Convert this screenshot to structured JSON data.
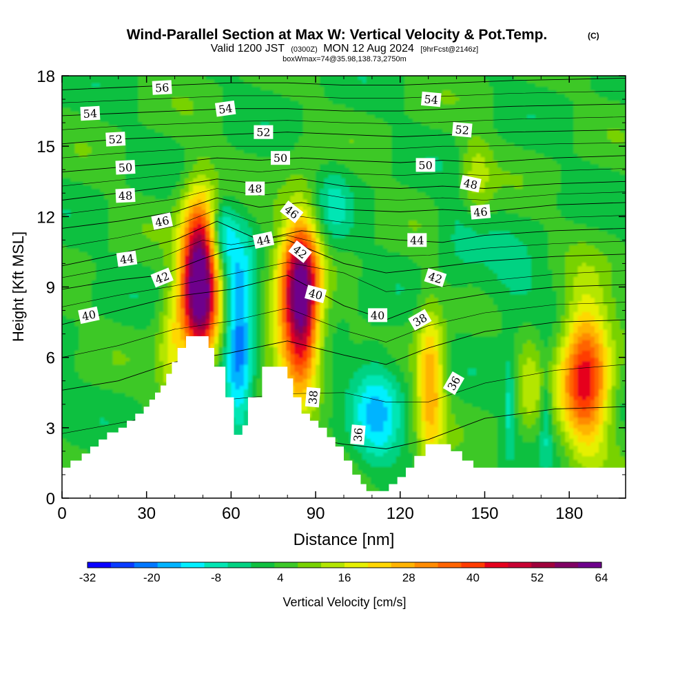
{
  "chart_data": {
    "type": "heatmap",
    "title": "Wind-Parallel Section at Max W: Vertical Velocity & Pot.Temp.",
    "title_mark": "(C)",
    "subtitle": {
      "main": "Valid 1200 JST",
      "utc": "(0300Z)",
      "date": "MON 12 Aug 2024",
      "forecast": "[9hrFcst@2146z]"
    },
    "boxline": "boxWmax=74@35.98,138.73,2750m",
    "xlabel": "Distance [nm]",
    "ylabel": "Height [Kft MSL]",
    "xlim": [
      0,
      200
    ],
    "ylim": [
      0,
      18
    ],
    "xticks": [
      "0",
      "30",
      "60",
      "90",
      "120",
      "150",
      "180"
    ],
    "yticks": [
      "0",
      "3",
      "6",
      "9",
      "12",
      "15",
      "18"
    ],
    "colorbar": {
      "label": "Vertical Velocity [cm/s]",
      "ticks": [
        "-32",
        "-20",
        "-8",
        "4",
        "16",
        "28",
        "40",
        "52",
        "64"
      ],
      "min": -32,
      "max": 64,
      "colors": [
        "#0a00ff",
        "#0a3cff",
        "#0078ff",
        "#00b4ff",
        "#00f0ff",
        "#00e6b4",
        "#00d282",
        "#10c040",
        "#3cc828",
        "#78d200",
        "#b4e600",
        "#e6f000",
        "#ffd700",
        "#ffb400",
        "#ff8c00",
        "#ff6400",
        "#ff3c00",
        "#e6001e",
        "#c80032",
        "#a0003c",
        "#800064",
        "#6e008c"
      ]
    },
    "w_cells": [
      {
        "x": 48,
        "y": 9.2,
        "sx": 4.5,
        "sy": 2.3,
        "w": 70
      },
      {
        "x": 84,
        "y": 8.3,
        "sx": 4.5,
        "sy": 2.4,
        "w": 65
      },
      {
        "x": 185,
        "y": 5.2,
        "sx": 6,
        "sy": 2.2,
        "w": 42
      },
      {
        "x": 130,
        "y": 4.8,
        "sx": 3.5,
        "sy": 2.3,
        "w": 26
      },
      {
        "x": 38,
        "y": 6.2,
        "sx": 3.5,
        "sy": 1.8,
        "w": 14
      },
      {
        "x": 76,
        "y": 7.5,
        "sx": 3.5,
        "sy": 2.0,
        "w": 10
      },
      {
        "x": 146,
        "y": 13.6,
        "sx": 4,
        "sy": 1.2,
        "w": 12
      },
      {
        "x": 165,
        "y": 4.8,
        "sx": 3,
        "sy": 1.8,
        "w": 10
      },
      {
        "x": 62,
        "y": 7.0,
        "sx": 3.5,
        "sy": 2.6,
        "w": -26
      },
      {
        "x": 111,
        "y": 3.6,
        "sx": 6,
        "sy": 1.8,
        "w": -16
      },
      {
        "x": 56,
        "y": 11.3,
        "sx": 3,
        "sy": 1.0,
        "w": -14
      },
      {
        "x": 96,
        "y": 12.3,
        "sx": 4,
        "sy": 1.2,
        "w": -8
      },
      {
        "x": 158,
        "y": 3.8,
        "sx": 1.4,
        "sy": 1.5,
        "w": -10
      },
      {
        "x": 171,
        "y": 3.6,
        "sx": 1.4,
        "sy": 1.5,
        "w": -10
      },
      {
        "x": 160,
        "y": 8.7,
        "sx": 9,
        "sy": 1.3,
        "w": -6
      },
      {
        "x": 140,
        "y": 11.3,
        "sx": 6,
        "sy": 1.4,
        "w": -6
      }
    ],
    "terrain": [
      [
        0,
        1.3
      ],
      [
        3,
        1.3
      ],
      [
        3,
        1.6
      ],
      [
        7,
        1.6
      ],
      [
        7,
        1.9
      ],
      [
        10,
        1.9
      ],
      [
        10,
        2.2
      ],
      [
        13,
        2.2
      ],
      [
        13,
        2.5
      ],
      [
        16,
        2.5
      ],
      [
        16,
        2.8
      ],
      [
        20,
        2.8
      ],
      [
        20,
        3.0
      ],
      [
        23,
        3.0
      ],
      [
        23,
        3.3
      ],
      [
        26,
        3.3
      ],
      [
        26,
        3.6
      ],
      [
        29,
        3.6
      ],
      [
        29,
        3.9
      ],
      [
        31,
        3.9
      ],
      [
        31,
        4.2
      ],
      [
        33,
        4.2
      ],
      [
        33,
        4.5
      ],
      [
        35,
        4.5
      ],
      [
        35,
        4.8
      ],
      [
        37,
        4.8
      ],
      [
        37,
        5.3
      ],
      [
        39,
        5.3
      ],
      [
        39,
        5.8
      ],
      [
        41,
        5.8
      ],
      [
        41,
        6.4
      ],
      [
        44,
        6.4
      ],
      [
        44,
        6.9
      ],
      [
        52,
        6.9
      ],
      [
        52,
        6.4
      ],
      [
        54,
        6.4
      ],
      [
        54,
        5.6
      ],
      [
        58,
        5.6
      ],
      [
        58,
        4.3
      ],
      [
        61,
        4.3
      ],
      [
        61,
        2.7
      ],
      [
        64,
        2.7
      ],
      [
        64,
        3.1
      ],
      [
        66,
        3.1
      ],
      [
        66,
        4.3
      ],
      [
        71,
        4.3
      ],
      [
        71,
        5.6
      ],
      [
        80,
        5.6
      ],
      [
        80,
        5.1
      ],
      [
        82,
        5.1
      ],
      [
        82,
        4.3
      ],
      [
        85,
        4.3
      ],
      [
        85,
        3.6
      ],
      [
        88,
        3.6
      ],
      [
        88,
        3.3
      ],
      [
        91,
        3.3
      ],
      [
        91,
        3.0
      ],
      [
        94,
        3.0
      ],
      [
        94,
        2.6
      ],
      [
        97,
        2.6
      ],
      [
        97,
        2.2
      ],
      [
        100,
        2.2
      ],
      [
        100,
        1.6
      ],
      [
        103,
        1.6
      ],
      [
        103,
        1.0
      ],
      [
        106,
        1.0
      ],
      [
        106,
        0.6
      ],
      [
        108,
        0.6
      ],
      [
        108,
        0.3
      ],
      [
        116,
        0.3
      ],
      [
        116,
        0.6
      ],
      [
        119,
        0.6
      ],
      [
        119,
        0.9
      ],
      [
        122,
        0.9
      ],
      [
        122,
        1.3
      ],
      [
        125,
        1.3
      ],
      [
        125,
        1.8
      ],
      [
        129,
        1.8
      ],
      [
        129,
        2.3
      ],
      [
        138,
        2.3
      ],
      [
        138,
        2.0
      ],
      [
        142,
        2.0
      ],
      [
        142,
        1.6
      ],
      [
        146,
        1.6
      ],
      [
        146,
        1.3
      ],
      [
        200,
        1.3
      ]
    ],
    "theta_contours": [
      {
        "theta": 36,
        "pts": [
          [
            0,
            0.9
          ],
          [
            25,
            1.6
          ],
          [
            50,
            2.4
          ],
          [
            80,
            2.7
          ],
          [
            100,
            2.3
          ],
          [
            115,
            2.1
          ],
          [
            130,
            2.5
          ],
          [
            150,
            3.4
          ],
          [
            175,
            3.8
          ],
          [
            200,
            3.9
          ]
        ]
      },
      {
        "theta": 38,
        "pts": [
          [
            0,
            4.6
          ],
          [
            20,
            5.0
          ],
          [
            40,
            5.8
          ],
          [
            60,
            6.2
          ],
          [
            80,
            6.7
          ],
          [
            100,
            6.1
          ],
          [
            115,
            5.7
          ],
          [
            130,
            6.4
          ],
          [
            150,
            7.1
          ],
          [
            175,
            7.5
          ],
          [
            200,
            7.6
          ]
        ]
      },
      {
        "theta": 40,
        "pts": [
          [
            0,
            7.4
          ],
          [
            20,
            8.0
          ],
          [
            40,
            8.6
          ],
          [
            60,
            8.9
          ],
          [
            80,
            9.5
          ],
          [
            100,
            8.2
          ],
          [
            115,
            7.6
          ],
          [
            130,
            8.3
          ],
          [
            150,
            8.7
          ],
          [
            175,
            9.0
          ],
          [
            200,
            9.1
          ]
        ]
      },
      {
        "theta": 42,
        "pts": [
          [
            0,
            8.9
          ],
          [
            20,
            9.3
          ],
          [
            35,
            9.5
          ],
          [
            50,
            10.2
          ],
          [
            60,
            10.6
          ],
          [
            80,
            11.0
          ],
          [
            100,
            10.0
          ],
          [
            115,
            9.6
          ],
          [
            130,
            9.8
          ],
          [
            150,
            10.1
          ],
          [
            175,
            10.3
          ],
          [
            200,
            10.4
          ]
        ]
      },
      {
        "theta": 44,
        "pts": [
          [
            0,
            9.9
          ],
          [
            20,
            10.4
          ],
          [
            40,
            11.0
          ],
          [
            55,
            11.8
          ],
          [
            70,
            11.0
          ],
          [
            85,
            11.4
          ],
          [
            100,
            11.2
          ],
          [
            120,
            11.0
          ],
          [
            135,
            10.9
          ],
          [
            150,
            11.2
          ],
          [
            175,
            11.4
          ],
          [
            200,
            11.5
          ]
        ]
      },
      {
        "theta": 46,
        "pts": [
          [
            0,
            11.5
          ],
          [
            20,
            11.8
          ],
          [
            40,
            12.2
          ],
          [
            55,
            12.8
          ],
          [
            70,
            12.4
          ],
          [
            85,
            12.6
          ],
          [
            100,
            12.3
          ],
          [
            120,
            12.2
          ],
          [
            135,
            12.3
          ],
          [
            150,
            12.2
          ],
          [
            175,
            12.5
          ],
          [
            200,
            12.6
          ]
        ]
      },
      {
        "theta": 48,
        "pts": [
          [
            0,
            12.7
          ],
          [
            20,
            13.0
          ],
          [
            40,
            13.3
          ],
          [
            55,
            13.6
          ],
          [
            70,
            13.4
          ],
          [
            85,
            13.6
          ],
          [
            100,
            13.3
          ],
          [
            120,
            13.2
          ],
          [
            135,
            13.3
          ],
          [
            150,
            13.2
          ],
          [
            175,
            13.4
          ],
          [
            200,
            13.5
          ]
        ]
      },
      {
        "theta": 50,
        "pts": [
          [
            0,
            13.9
          ],
          [
            20,
            14.1
          ],
          [
            40,
            14.3
          ],
          [
            55,
            14.5
          ],
          [
            70,
            14.4
          ],
          [
            85,
            14.5
          ],
          [
            100,
            14.4
          ],
          [
            120,
            14.3
          ],
          [
            135,
            14.4
          ],
          [
            150,
            14.3
          ],
          [
            175,
            14.5
          ],
          [
            200,
            14.6
          ]
        ]
      },
      {
        "theta": 52,
        "pts": [
          [
            0,
            15.1
          ],
          [
            20,
            15.3
          ],
          [
            40,
            15.4
          ],
          [
            60,
            15.5
          ],
          [
            80,
            15.6
          ],
          [
            100,
            15.5
          ],
          [
            120,
            15.4
          ],
          [
            140,
            15.5
          ],
          [
            160,
            15.6
          ],
          [
            200,
            15.7
          ]
        ]
      },
      {
        "theta": 54,
        "pts": [
          [
            0,
            16.3
          ],
          [
            20,
            16.4
          ],
          [
            40,
            16.5
          ],
          [
            60,
            16.6
          ],
          [
            80,
            16.6
          ],
          [
            100,
            16.5
          ],
          [
            120,
            16.5
          ],
          [
            140,
            16.6
          ],
          [
            160,
            16.7
          ],
          [
            200,
            16.8
          ]
        ]
      },
      {
        "theta": 56,
        "pts": [
          [
            0,
            17.4
          ],
          [
            20,
            17.5
          ],
          [
            40,
            17.6
          ],
          [
            60,
            17.7
          ],
          [
            80,
            17.7
          ],
          [
            100,
            17.6
          ],
          [
            120,
            17.6
          ],
          [
            140,
            17.7
          ],
          [
            160,
            17.8
          ],
          [
            200,
            17.9
          ]
        ]
      }
    ],
    "contour_labels": [
      {
        "text": "56",
        "x": 35.5,
        "y": 17.5,
        "rot": -3
      },
      {
        "text": "54",
        "x": 10,
        "y": 16.4,
        "rot": -3
      },
      {
        "text": "54",
        "x": 58,
        "y": 16.6,
        "rot": -8
      },
      {
        "text": "54",
        "x": 131,
        "y": 17.0,
        "rot": 5
      },
      {
        "text": "52",
        "x": 19,
        "y": 15.3,
        "rot": -3
      },
      {
        "text": "52",
        "x": 71.5,
        "y": 15.6,
        "rot": 0
      },
      {
        "text": "52",
        "x": 142,
        "y": 15.7,
        "rot": 5
      },
      {
        "text": "50",
        "x": 22.5,
        "y": 14.1,
        "rot": -3
      },
      {
        "text": "50",
        "x": 77.5,
        "y": 14.5,
        "rot": 0
      },
      {
        "text": "50",
        "x": 129,
        "y": 14.2,
        "rot": 0
      },
      {
        "text": "48",
        "x": 22.5,
        "y": 12.9,
        "rot": -3
      },
      {
        "text": "48",
        "x": 68.5,
        "y": 13.2,
        "rot": 0
      },
      {
        "text": "48",
        "x": 145,
        "y": 13.4,
        "rot": 12
      },
      {
        "text": "46",
        "x": 35.5,
        "y": 11.8,
        "rot": -12
      },
      {
        "text": "46",
        "x": 81.5,
        "y": 12.2,
        "rot": 38
      },
      {
        "text": "46",
        "x": 148.5,
        "y": 12.2,
        "rot": -5
      },
      {
        "text": "44",
        "x": 23,
        "y": 10.2,
        "rot": -8
      },
      {
        "text": "44",
        "x": 71.5,
        "y": 11.0,
        "rot": -12
      },
      {
        "text": "44",
        "x": 126,
        "y": 11.0,
        "rot": 0
      },
      {
        "text": "42",
        "x": 35.5,
        "y": 9.4,
        "rot": -22
      },
      {
        "text": "42",
        "x": 84.5,
        "y": 10.5,
        "rot": 38
      },
      {
        "text": "42",
        "x": 132.5,
        "y": 9.4,
        "rot": 18
      },
      {
        "text": "40",
        "x": 9.5,
        "y": 7.8,
        "rot": -12
      },
      {
        "text": "40",
        "x": 90,
        "y": 8.7,
        "rot": 15
      },
      {
        "text": "40",
        "x": 112,
        "y": 7.8,
        "rot": 0
      },
      {
        "text": "38",
        "x": 127,
        "y": 7.6,
        "rot": -30
      },
      {
        "text": "38",
        "x": 89,
        "y": 4.3,
        "rot": -85
      },
      {
        "text": "36",
        "x": 139,
        "y": 4.9,
        "rot": -60
      },
      {
        "text": "36",
        "x": 105,
        "y": 2.7,
        "rot": -85
      }
    ]
  }
}
